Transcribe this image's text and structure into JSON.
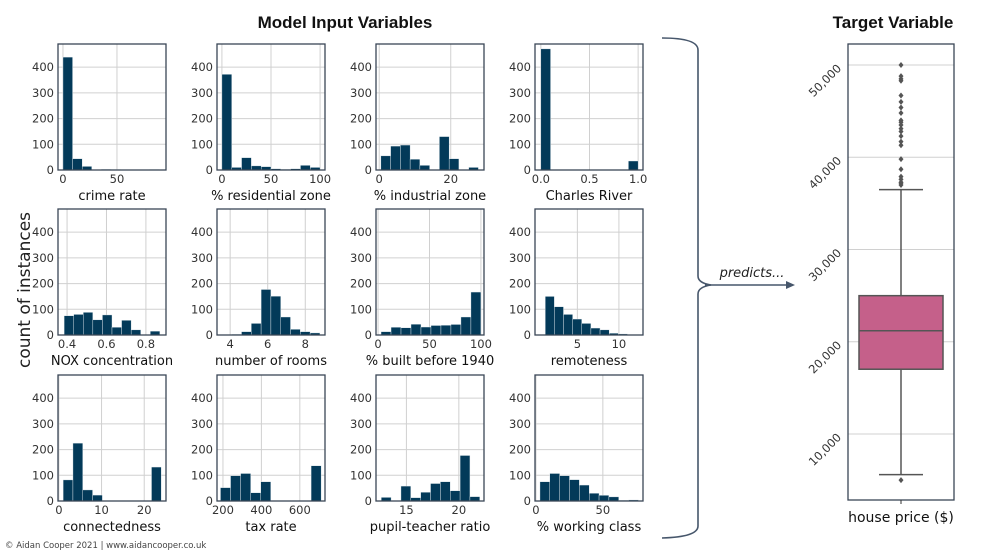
{
  "header": {
    "inputs_title": "Model Input Variables",
    "target_title": "Target Variable",
    "ylabel": "count of instances",
    "predicts": "predicts...",
    "footer": "© Aidan Cooper 2021 | www.aidancooper.co.uk"
  },
  "colors": {
    "bar": "#033a59",
    "box": "#c5608a",
    "frame": "#3a4656"
  },
  "chart_data": [
    {
      "type": "bar",
      "xlabel": "crime rate",
      "bin_range": [
        0,
        89
      ],
      "values": [
        439,
        44,
        14,
        1,
        3,
        2,
        0,
        1,
        0,
        2
      ],
      "xlim": [
        -4.6,
        95.4
      ],
      "xticks": [
        0,
        50
      ],
      "ylim": [
        0,
        490
      ],
      "yticks": [
        0,
        100,
        200,
        300,
        400
      ],
      "grid": true
    },
    {
      "type": "bar",
      "xlabel": "% residential zone",
      "bin_range": [
        0,
        100
      ],
      "values": [
        372,
        10,
        48,
        16,
        13,
        5,
        3,
        5,
        18,
        10
      ],
      "xlim": [
        -5,
        105
      ],
      "xticks": [
        0,
        50,
        100
      ],
      "ylim": [
        0,
        490
      ],
      "yticks": [
        0,
        100,
        200,
        300,
        400
      ],
      "grid": true
    },
    {
      "type": "bar",
      "xlabel": "% industrial zone",
      "bin_range": [
        0.46,
        27.74
      ],
      "values": [
        55,
        93,
        97,
        42,
        18,
        0,
        130,
        44,
        0,
        10
      ],
      "xlim": [
        -0.9,
        29.3
      ],
      "xticks": [
        0,
        20
      ],
      "ylim": [
        0,
        490
      ],
      "yticks": [
        0,
        100,
        200,
        300,
        400
      ],
      "grid": true
    },
    {
      "type": "bar",
      "xlabel": "Charles River",
      "bin_range": [
        0,
        1
      ],
      "values": [
        471,
        0,
        0,
        0,
        0,
        0,
        0,
        0,
        0,
        35
      ],
      "xlim": [
        -0.06,
        1.05
      ],
      "xticks": [
        "0.0",
        "0.5",
        "1.0"
      ],
      "ylim": [
        0,
        490
      ],
      "yticks": [
        0,
        100,
        200,
        300,
        400
      ],
      "grid": true
    },
    {
      "type": "bar",
      "xlabel": "NOX concentration",
      "bin_range": [
        0.385,
        0.871
      ],
      "values": [
        75,
        80,
        88,
        59,
        78,
        30,
        57,
        20,
        0,
        15
      ],
      "xlim": [
        0.354,
        0.902
      ],
      "xticks": [
        0.4,
        0.6,
        0.8
      ],
      "ylim": [
        0,
        490
      ],
      "yticks": [
        0,
        100,
        200,
        300,
        400
      ],
      "grid": true
    },
    {
      "type": "bar",
      "xlabel": "number of rooms",
      "bin_range": [
        3.56,
        8.78
      ],
      "values": [
        1,
        3,
        13,
        45,
        177,
        151,
        70,
        22,
        13,
        8
      ],
      "xlim": [
        3.3,
        9.05
      ],
      "xticks": [
        4,
        6,
        8
      ],
      "ylim": [
        0,
        490
      ],
      "yticks": [
        0,
        100,
        200,
        300,
        400
      ],
      "grid": true
    },
    {
      "type": "bar",
      "xlabel": "% built before 1940",
      "bin_range": [
        2.9,
        100
      ],
      "values": [
        13,
        30,
        28,
        42,
        31,
        37,
        38,
        41,
        70,
        167
      ],
      "xlim": [
        -2,
        103
      ],
      "xticks": [
        0,
        50,
        100
      ],
      "ylim": [
        0,
        490
      ],
      "yticks": [
        0,
        100,
        200,
        300,
        400
      ],
      "grid": true
    },
    {
      "type": "bar",
      "xlabel": "remoteness",
      "bin_range": [
        1.13,
        12.13
      ],
      "values": [
        150,
        110,
        80,
        62,
        45,
        27,
        20,
        7,
        4,
        1
      ],
      "xlim": [
        -0.1,
        12.9
      ],
      "xticks": [
        5,
        10
      ],
      "ylim": [
        0,
        490
      ],
      "yticks": [
        0,
        100,
        200,
        300,
        400
      ],
      "grid": true
    },
    {
      "type": "bar",
      "xlabel": "connectedness",
      "bin_range": [
        1,
        24
      ],
      "values": [
        82,
        225,
        43,
        23,
        0,
        0,
        0,
        0,
        0,
        132
      ],
      "xlim": [
        -0.2,
        25.1
      ],
      "xticks": [
        0,
        10,
        20
      ],
      "ylim": [
        0,
        490
      ],
      "yticks": [
        0,
        100,
        200,
        300,
        400
      ],
      "grid": true
    },
    {
      "type": "bar",
      "xlabel": "tax rate",
      "bin_range": [
        187,
        711
      ],
      "values": [
        52,
        98,
        107,
        32,
        75,
        0,
        0,
        0,
        0,
        137
      ],
      "xlim": [
        169,
        731
      ],
      "xticks": [
        200,
        400,
        600
      ],
      "ylim": [
        0,
        490
      ],
      "yticks": [
        0,
        100,
        200,
        300,
        400
      ],
      "grid": true
    },
    {
      "type": "bar",
      "xlabel": "pupil-teacher ratio",
      "bin_range": [
        12.6,
        22
      ],
      "values": [
        14,
        0,
        58,
        13,
        34,
        68,
        75,
        40,
        177,
        17
      ],
      "xlim": [
        12.1,
        22.4
      ],
      "xticks": [
        15,
        20
      ],
      "ylim": [
        0,
        490
      ],
      "yticks": [
        0,
        100,
        200,
        300,
        400
      ],
      "grid": true
    },
    {
      "type": "bar",
      "xlabel": "% working class",
      "bin_range": [
        3,
        76.6
      ],
      "values": [
        75,
        107,
        98,
        83,
        62,
        30,
        22,
        16,
        3,
        4
      ],
      "xlim": [
        -0.7,
        80
      ],
      "xticks": [
        0,
        50
      ],
      "ylim": [
        0,
        490
      ],
      "yticks": [
        0,
        100,
        200,
        300,
        400
      ],
      "grid": true
    },
    {
      "type": "box",
      "xlabel": "house price ($)",
      "q1": 17025,
      "median": 21200,
      "q3": 25000,
      "whisker_low": 5600,
      "whisker_high": 36500,
      "outliers": [
        5000,
        37000,
        37200,
        37300,
        37600,
        37900,
        38700,
        39800,
        41300,
        41700,
        42300,
        42800,
        43100,
        43500,
        43800,
        44000,
        44800,
        45400,
        46000,
        46700,
        48300,
        48500,
        48800,
        50000
      ],
      "ylim": [
        2850,
        52280
      ],
      "yticks": [
        "10,000",
        "20,000",
        "30,000",
        "40,000",
        "50,000"
      ],
      "ytick_values": [
        10000,
        20000,
        30000,
        40000,
        50000
      ],
      "grid": true
    }
  ]
}
